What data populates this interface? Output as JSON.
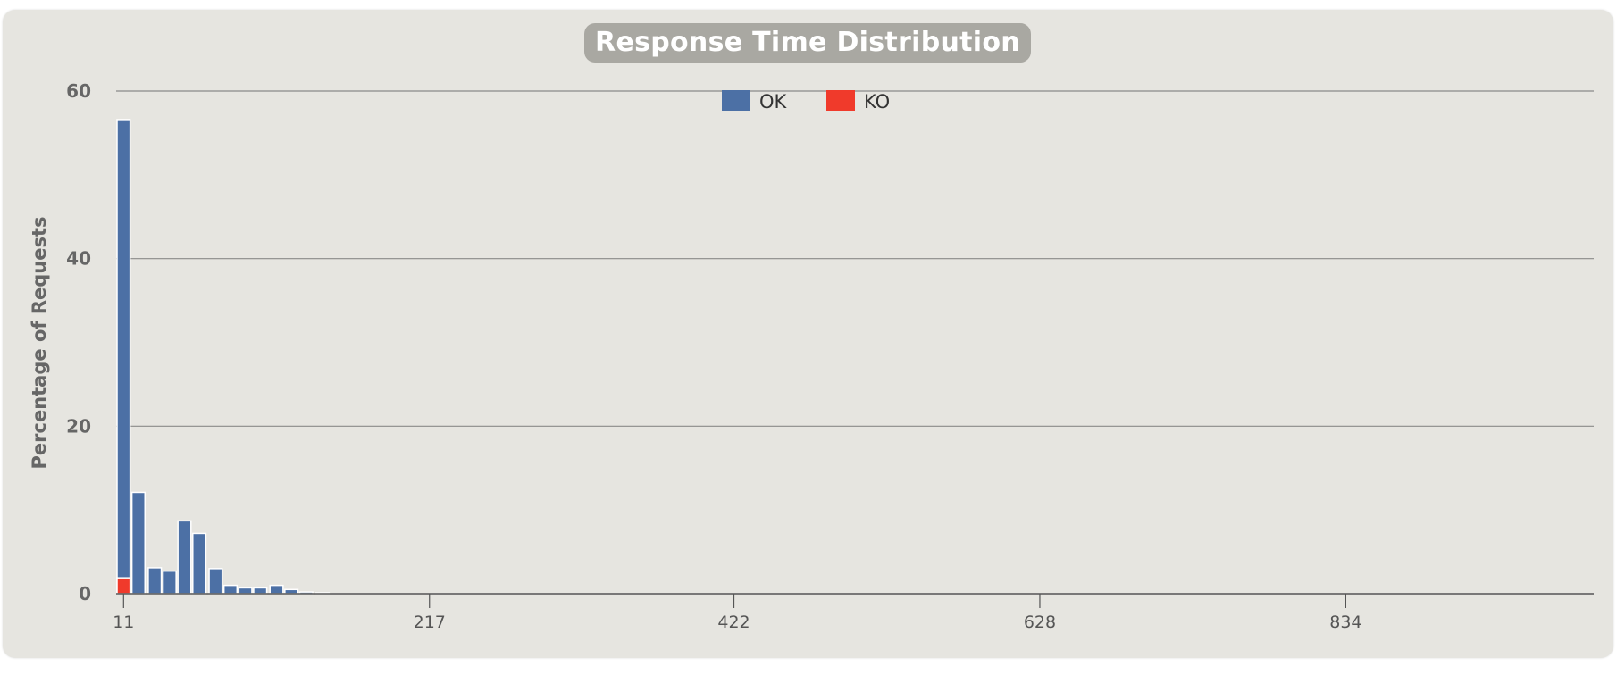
{
  "chart_data": {
    "type": "bar",
    "title": "Response Time Distribution",
    "xlabel": "",
    "ylabel": "Percentage of Requests",
    "ylim": [
      0,
      60
    ],
    "yticks": [
      0,
      20,
      40,
      60
    ],
    "xticks": [
      11,
      217,
      422,
      628,
      834
    ],
    "xlim": [
      6,
      1001
    ],
    "grid": true,
    "legend_position": "top-center",
    "x": [
      11,
      21,
      32,
      42,
      52,
      62,
      73,
      83,
      93,
      103,
      114,
      124,
      134,
      145
    ],
    "series": [
      {
        "name": "OK",
        "color": "#4c70a5",
        "values": [
          56.6,
          12.1,
          3.1,
          2.7,
          8.7,
          7.2,
          3.0,
          1.0,
          0.7,
          0.7,
          1.0,
          0.5,
          0.2,
          0.1
        ]
      },
      {
        "name": "KO",
        "color": "#f03a2b",
        "values": [
          1.9,
          0,
          0,
          0,
          0,
          0,
          0,
          0,
          0,
          0,
          0,
          0,
          0,
          0
        ]
      }
    ]
  }
}
